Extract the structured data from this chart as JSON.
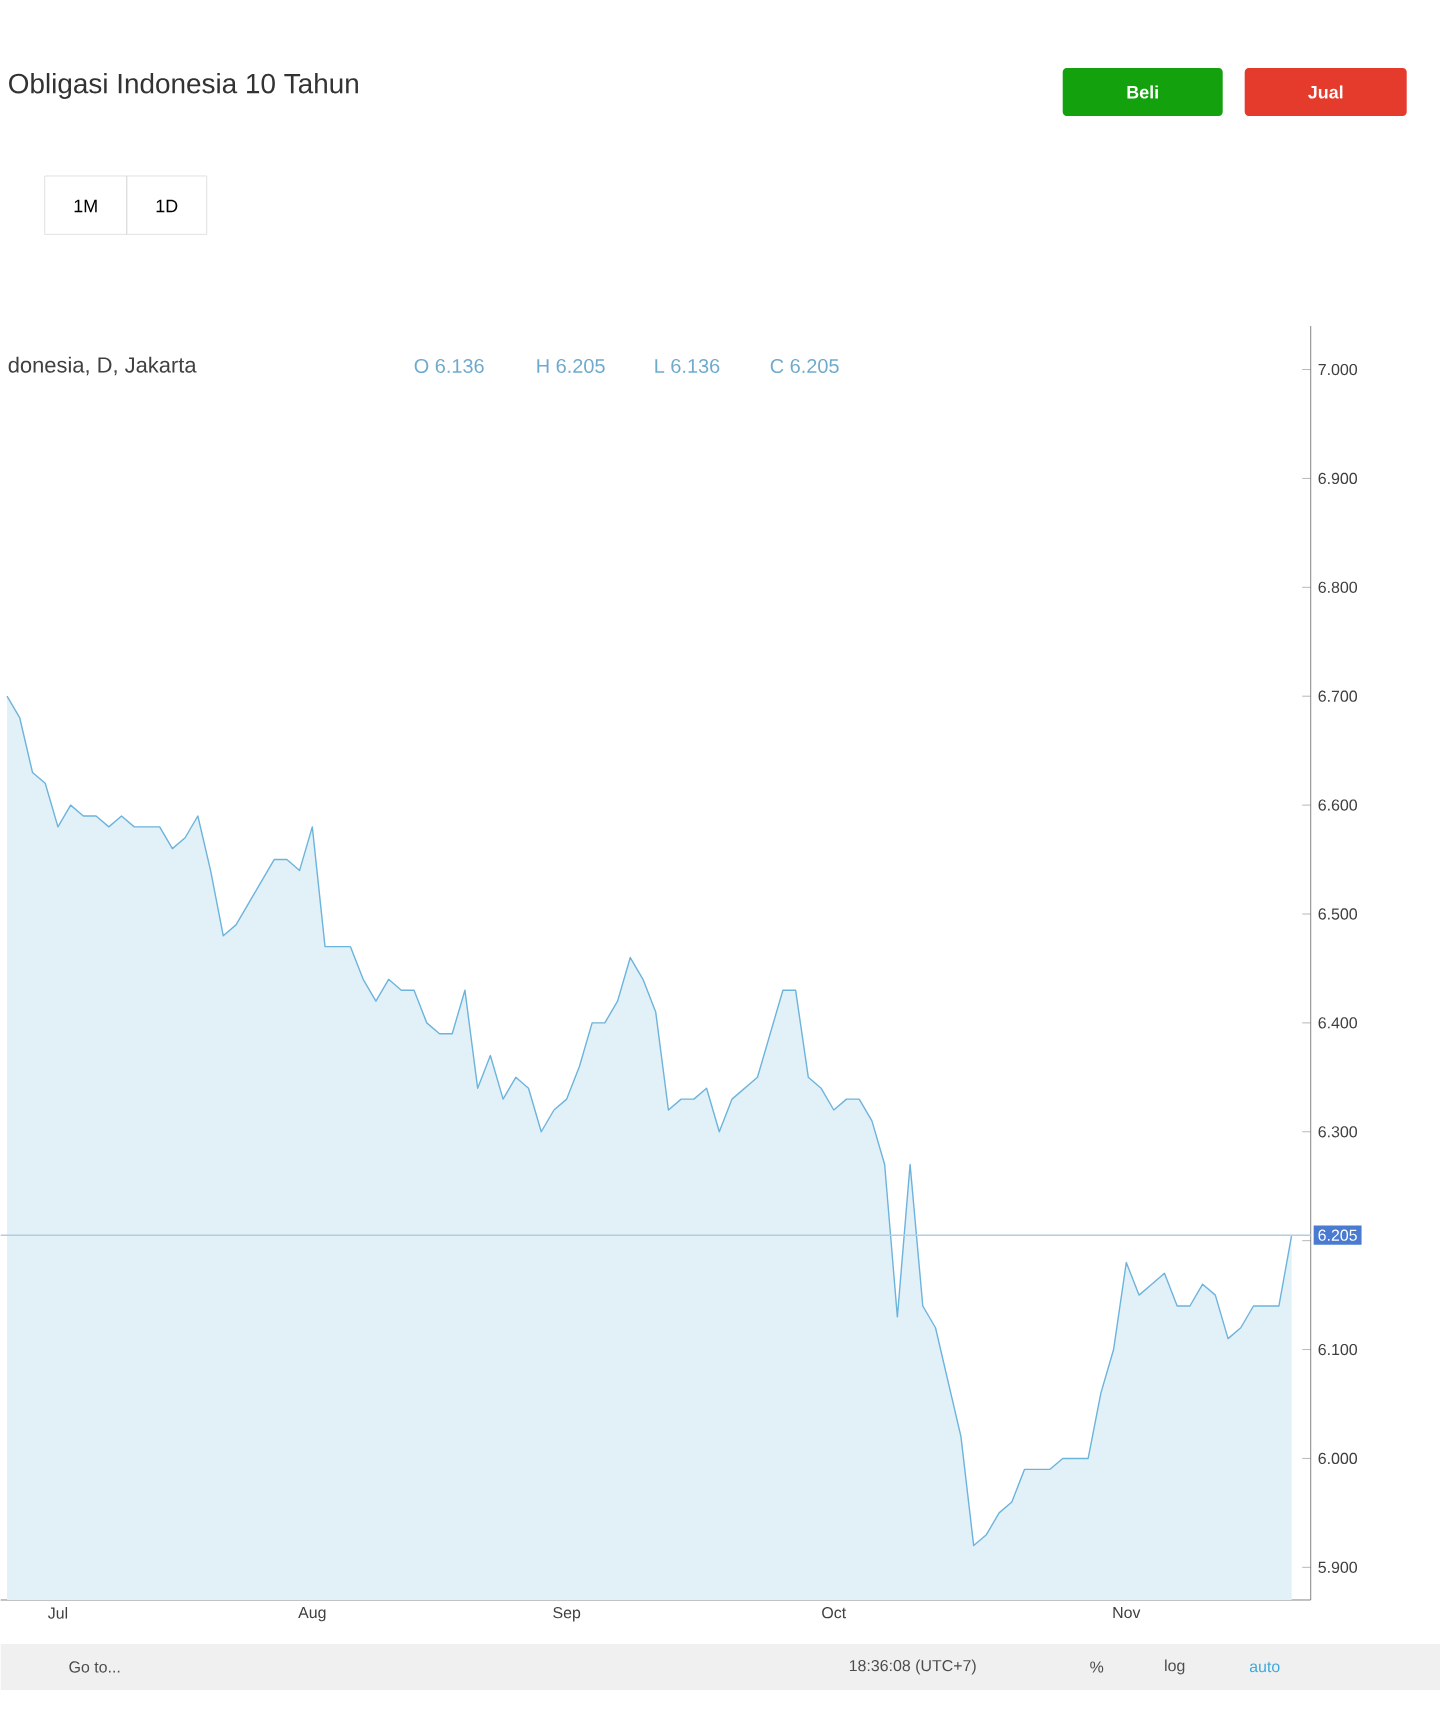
{
  "chart_data": {
    "type": "area",
    "title": "Obligasi Indonesia 10 Tahun",
    "subtitle": "donesia, D, Jakarta",
    "categories": [
      null,
      null,
      null,
      null,
      "Jul",
      null,
      null,
      null,
      null,
      null,
      null,
      null,
      null,
      null,
      null,
      null,
      null,
      null,
      null,
      null,
      null,
      null,
      null,
      null,
      "Aug",
      null,
      null,
      null,
      null,
      null,
      null,
      null,
      null,
      null,
      null,
      null,
      null,
      null,
      null,
      null,
      null,
      null,
      null,
      null,
      "Sep",
      null,
      null,
      null,
      null,
      null,
      null,
      null,
      null,
      null,
      null,
      null,
      null,
      null,
      null,
      null,
      null,
      null,
      null,
      null,
      null,
      "Oct",
      null,
      null,
      null,
      null,
      null,
      null,
      null,
      null,
      null,
      null,
      null,
      null,
      null,
      null,
      null,
      null,
      null,
      null,
      null,
      null,
      null,
      null,
      "Nov",
      null,
      null,
      null,
      null,
      null,
      null,
      null,
      null,
      null,
      null,
      null,
      null,
      null
    ],
    "series": [
      {
        "color": "#6cb4dc",
        "values": [
          6.7,
          6.68,
          6.63,
          6.62,
          6.58,
          6.6,
          6.59,
          6.59,
          6.58,
          6.59,
          6.58,
          6.58,
          6.58,
          6.56,
          6.57,
          6.59,
          6.54,
          6.48,
          6.49,
          6.51,
          6.53,
          6.55,
          6.55,
          6.54,
          6.58,
          6.47,
          6.47,
          6.47,
          6.44,
          6.42,
          6.44,
          6.43,
          6.43,
          6.4,
          6.39,
          6.39,
          6.43,
          6.34,
          6.37,
          6.33,
          6.35,
          6.34,
          6.3,
          6.32,
          6.33,
          6.36,
          6.4,
          6.4,
          6.42,
          6.46,
          6.44,
          6.41,
          6.32,
          6.33,
          6.33,
          6.34,
          6.3,
          6.33,
          6.34,
          6.35,
          6.39,
          6.43,
          6.43,
          6.35,
          6.34,
          6.32,
          6.33,
          6.33,
          6.31,
          6.27,
          6.13,
          6.27,
          6.14,
          6.12,
          6.07,
          6.02,
          5.92,
          5.93,
          5.95,
          5.96,
          5.99,
          5.99,
          5.99,
          6.0,
          6.0,
          6.0,
          6.06,
          6.1,
          6.18,
          6.15,
          6.16,
          6.17,
          6.14,
          6.14,
          6.16,
          6.15,
          6.11,
          6.12,
          6.14,
          6.14,
          6.14,
          6.205
        ]
      }
    ],
    "ylim": [
      5.87,
      7.04
    ],
    "yticks": [
      {
        "value": 5.9,
        "label": "5.900"
      },
      {
        "value": 6.0,
        "label": "6.000"
      },
      {
        "value": 6.1,
        "label": "6.100"
      },
      {
        "value": 6.2,
        "label": null
      },
      {
        "value": 6.3,
        "label": "6.300"
      },
      {
        "value": 6.4,
        "label": "6.400"
      },
      {
        "value": 6.5,
        "label": "6.500"
      },
      {
        "value": 6.6,
        "label": "6.600"
      },
      {
        "value": 6.7,
        "label": "6.700"
      },
      {
        "value": 6.8,
        "label": "6.800"
      },
      {
        "value": 6.9,
        "label": "6.900"
      },
      {
        "value": 7.0,
        "label": "7.000"
      }
    ],
    "ref_lines": [
      {
        "axis": "y",
        "value": 6.205,
        "label": "6.205",
        "color": "#b4cde6"
      }
    ],
    "annotations": [
      "O 6.136",
      "H 6.205",
      "L 6.136",
      "C 6.205",
      "Beli",
      "Jual",
      "1M",
      "1D",
      "Go to...",
      "18:36:08 (UTC+7)",
      "%",
      "log",
      "auto"
    ]
  }
}
